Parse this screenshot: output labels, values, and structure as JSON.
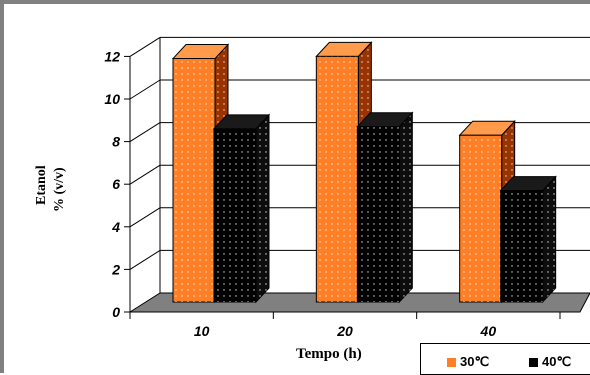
{
  "chart_data": {
    "type": "bar",
    "categories": [
      "10",
      "20",
      "40"
    ],
    "series": [
      {
        "name": "30℃",
        "values": [
          11.9,
          12.0,
          8.3
        ]
      },
      {
        "name": "40℃",
        "values": [
          8.6,
          8.7,
          5.7
        ]
      }
    ],
    "xlabel": "Tempo (h)",
    "ylabel_line1": "Etanol",
    "ylabel_line2": "% (v/v)",
    "ylim": [
      0,
      12
    ],
    "yticks": [
      "0",
      "2",
      "4",
      "6",
      "8",
      "10",
      "12"
    ],
    "grid": true,
    "three_d": true,
    "legend_position": "bottom-right",
    "colors": {
      "series0_front": "#ff7f27",
      "series0_top": "#ff9b4a",
      "series0_side": "#993300",
      "series1_front": "#000000",
      "series1_top": "#1a1a1a",
      "series1_side": "#0d0d0d",
      "floor": "#808080",
      "grid": "#000000"
    }
  }
}
